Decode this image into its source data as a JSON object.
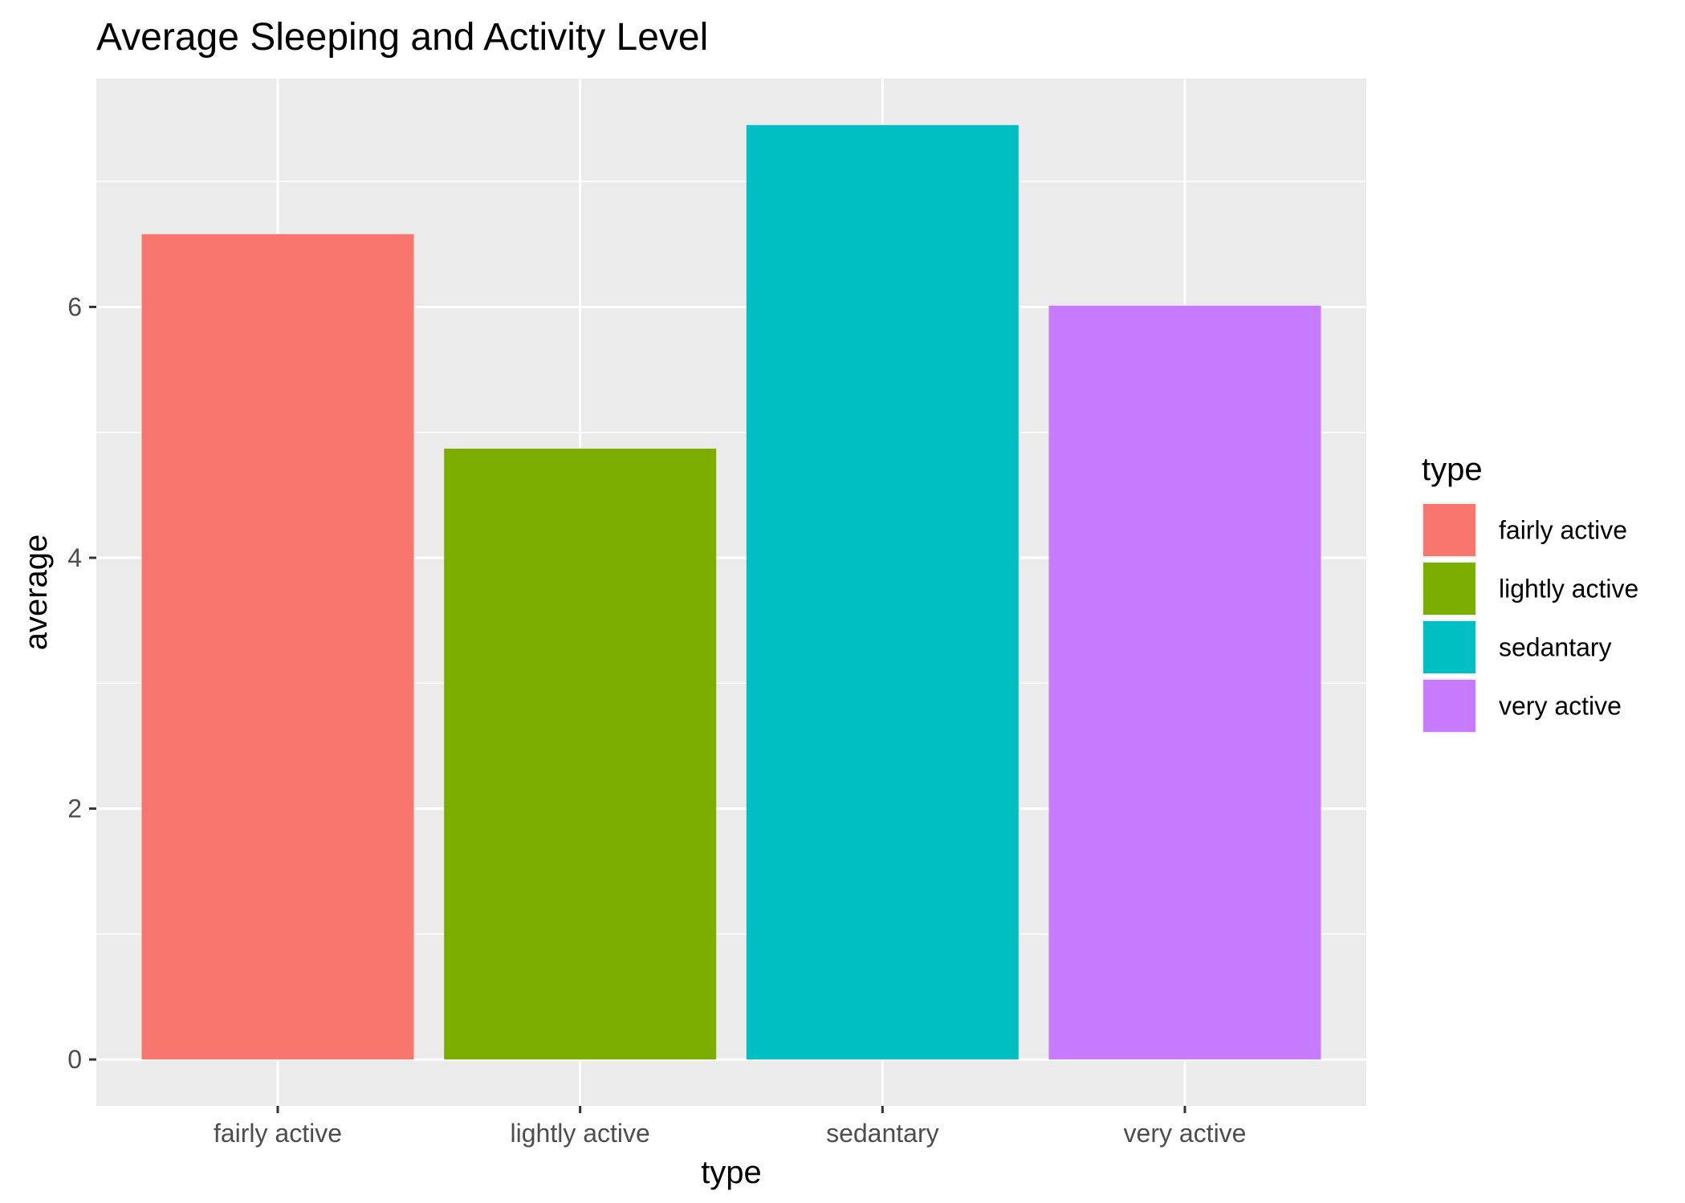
{
  "chart_data": {
    "type": "bar",
    "title": "Average Sleeping and Activity Level",
    "xlabel": "type",
    "ylabel": "average",
    "categories": [
      "fairly active",
      "lightly active",
      "sedantary",
      "very active"
    ],
    "values": [
      6.58,
      4.87,
      7.45,
      6.01
    ],
    "yticks": [
      0,
      2,
      4,
      6
    ],
    "ytick_labels": [
      "0",
      "2",
      "4",
      "6"
    ],
    "ylim": [
      -0.37,
      7.82
    ],
    "grid": true,
    "legend": {
      "title": "type",
      "placement": "right",
      "entries": [
        "fairly active",
        "lightly active",
        "sedantary",
        "very active"
      ]
    },
    "colors": [
      "#F8766D",
      "#7CAE00",
      "#00BFC4",
      "#C77CFF"
    ],
    "panel_background": "#EBEBEB",
    "grid_color": "#FFFFFF"
  }
}
